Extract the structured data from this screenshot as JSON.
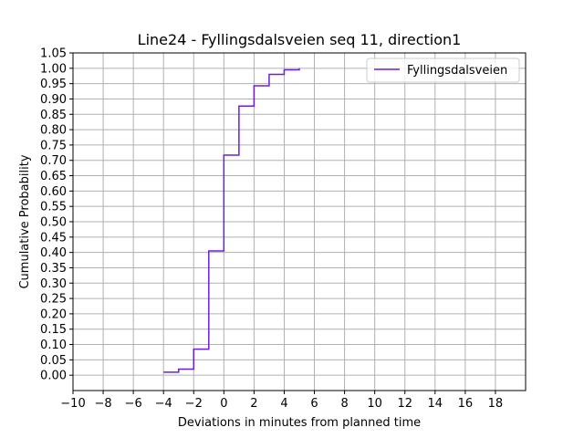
{
  "chart_data": {
    "type": "line",
    "drawstyle": "steps-post",
    "title": "Line24 - Fyllingsdalsveien seq 11, direction1",
    "xlabel": "Deviations in minutes from planned time",
    "ylabel": "Cumulative Probability",
    "xlim": [
      -10,
      20
    ],
    "ylim": [
      -0.05,
      1.05
    ],
    "xticks": [
      -10,
      -8,
      -6,
      -4,
      -2,
      0,
      2,
      4,
      6,
      8,
      10,
      12,
      14,
      16,
      18
    ],
    "yticks": [
      0.0,
      0.05,
      0.1,
      0.15,
      0.2,
      0.25,
      0.3,
      0.35,
      0.4,
      0.45,
      0.5,
      0.55,
      0.6,
      0.65,
      0.7,
      0.75,
      0.8,
      0.85,
      0.9,
      0.95,
      1.0,
      1.05
    ],
    "grid": true,
    "legend_position": "top-right",
    "series": [
      {
        "name": "Fyllingsdalsveien",
        "color": "#6a1fe0",
        "x": [
          -4,
          -3,
          -2,
          -1,
          0,
          1,
          2,
          3,
          4,
          5
        ],
        "y": [
          0.01,
          0.02,
          0.085,
          0.405,
          0.717,
          0.877,
          0.943,
          0.98,
          0.995,
          1.0
        ]
      }
    ]
  }
}
